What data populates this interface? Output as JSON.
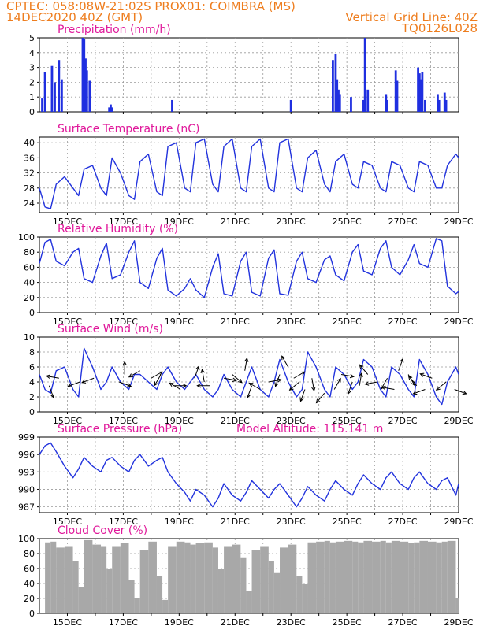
{
  "header": {
    "line1_left": "CPTEC:   058:08W-21:02S   PROX01: COIMBRA (MS)",
    "line2_left": "14DEC2020 40Z (GMT)",
    "line2_right": "Vertical Grid Line: 40Z",
    "line3_right": "TQ0126L028"
  },
  "colors": {
    "header": "#ee7d1e",
    "panel_title": "#e0199b",
    "line": "#2233dd",
    "precip_bar": "#1f2fe0",
    "cloud_fill": "#a8a8a8",
    "wind_arrow": "#000000"
  },
  "date_axis": {
    "labels": [
      "15DEC",
      "17DEC",
      "19DEC",
      "21DEC",
      "23DEC",
      "25DEC",
      "27DEC",
      "29DEC"
    ],
    "start_day": 14.0,
    "end_day": 29.0,
    "grid": "dotted vertical line at every day"
  },
  "chart_data": [
    {
      "type": "bar",
      "title": "Precipitation (mm/h)",
      "ylim": [
        0,
        5
      ],
      "yticks": [
        0,
        1,
        2,
        3,
        4,
        5
      ],
      "x_unit": "day of December 2020",
      "x": [
        14.1,
        14.2,
        14.45,
        14.55,
        14.7,
        14.8,
        15.55,
        15.6,
        15.65,
        15.7,
        15.8,
        16.5,
        16.55,
        16.6,
        18.75,
        23.0,
        24.5,
        24.6,
        24.65,
        24.7,
        24.75,
        25.15,
        25.6,
        25.65,
        25.75,
        26.4,
        26.45,
        26.75,
        26.8,
        27.55,
        27.6,
        27.65,
        27.7,
        27.8,
        28.25,
        28.3,
        28.5,
        28.55
      ],
      "values": [
        0.9,
        2.7,
        3.1,
        2.0,
        3.5,
        2.2,
        5.0,
        4.9,
        3.6,
        2.8,
        2.1,
        0.3,
        0.5,
        0.3,
        0.8,
        0.8,
        3.5,
        3.9,
        2.2,
        1.5,
        1.2,
        1.0,
        0.8,
        5.0,
        1.5,
        1.2,
        0.8,
        2.8,
        2.1,
        3.0,
        2.6,
        2.2,
        2.7,
        0.8,
        1.2,
        0.8,
        1.3,
        0.8
      ]
    },
    {
      "type": "line",
      "title": "Surface Temperature (nC)",
      "ylim": [
        21.5,
        41.5
      ],
      "yticks": [
        24,
        28,
        32,
        36,
        40
      ],
      "x_unit": "day of December 2020",
      "x": [
        14.0,
        14.2,
        14.4,
        14.6,
        14.9,
        15.2,
        15.4,
        15.6,
        15.9,
        16.2,
        16.4,
        16.6,
        16.9,
        17.2,
        17.4,
        17.6,
        17.9,
        18.2,
        18.4,
        18.6,
        18.9,
        19.2,
        19.4,
        19.6,
        19.9,
        20.2,
        20.4,
        20.6,
        20.9,
        21.2,
        21.4,
        21.6,
        21.9,
        22.2,
        22.4,
        22.6,
        22.9,
        23.2,
        23.4,
        23.6,
        23.9,
        24.2,
        24.4,
        24.6,
        24.9,
        25.2,
        25.4,
        25.6,
        25.9,
        26.2,
        26.4,
        26.6,
        26.9,
        27.2,
        27.4,
        27.6,
        27.9,
        28.2,
        28.4,
        28.6,
        28.9,
        29.0
      ],
      "values": [
        28,
        23,
        22.5,
        29,
        31,
        28,
        26,
        33,
        34,
        28,
        26,
        36,
        32,
        26,
        25,
        35,
        37,
        27,
        26,
        39,
        40,
        28,
        27,
        40,
        41,
        29,
        27,
        39,
        41,
        28,
        27,
        39,
        41,
        28,
        27,
        40,
        41,
        28,
        27,
        36,
        38,
        29,
        27,
        35,
        37,
        29,
        28,
        35,
        34,
        28,
        27,
        35,
        34,
        28,
        27,
        35,
        34,
        28,
        28,
        34,
        37,
        36
      ]
    },
    {
      "type": "line",
      "title": "Relative Humidity (%)",
      "ylim": [
        0,
        100
      ],
      "yticks": [
        0,
        20,
        40,
        60,
        80,
        100
      ],
      "x_unit": "day of December 2020",
      "x": [
        14.0,
        14.2,
        14.4,
        14.6,
        14.9,
        15.2,
        15.4,
        15.6,
        15.9,
        16.2,
        16.4,
        16.6,
        16.9,
        17.2,
        17.4,
        17.6,
        17.9,
        18.2,
        18.4,
        18.6,
        18.9,
        19.2,
        19.4,
        19.6,
        19.9,
        20.2,
        20.4,
        20.6,
        20.9,
        21.2,
        21.4,
        21.6,
        21.9,
        22.2,
        22.4,
        22.6,
        22.9,
        23.2,
        23.4,
        23.6,
        23.9,
        24.2,
        24.4,
        24.6,
        24.9,
        25.2,
        25.4,
        25.6,
        25.9,
        26.2,
        26.4,
        26.6,
        26.9,
        27.2,
        27.4,
        27.6,
        27.9,
        28.2,
        28.4,
        28.6,
        28.9,
        29.0
      ],
      "values": [
        65,
        93,
        97,
        68,
        62,
        80,
        85,
        45,
        40,
        75,
        92,
        45,
        50,
        80,
        95,
        40,
        32,
        72,
        85,
        30,
        22,
        32,
        45,
        30,
        20,
        60,
        78,
        25,
        22,
        68,
        80,
        27,
        22,
        72,
        83,
        25,
        23,
        68,
        80,
        45,
        40,
        70,
        75,
        50,
        42,
        80,
        90,
        55,
        50,
        85,
        95,
        60,
        50,
        70,
        90,
        65,
        60,
        98,
        95,
        35,
        25,
        28
      ]
    },
    {
      "type": "line",
      "title": "Surface Wind (m/s)",
      "ylim": [
        0,
        10
      ],
      "yticks": [
        0,
        2,
        4,
        6,
        8,
        10
      ],
      "x_unit": "day of December 2020",
      "x": [
        14.0,
        14.2,
        14.4,
        14.6,
        14.9,
        15.2,
        15.4,
        15.6,
        15.9,
        16.2,
        16.4,
        16.6,
        16.9,
        17.2,
        17.4,
        17.6,
        17.9,
        18.2,
        18.4,
        18.6,
        18.9,
        19.2,
        19.4,
        19.6,
        19.9,
        20.2,
        20.4,
        20.6,
        20.9,
        21.2,
        21.4,
        21.6,
        21.9,
        22.2,
        22.4,
        22.6,
        22.9,
        23.2,
        23.4,
        23.6,
        23.9,
        24.2,
        24.4,
        24.6,
        24.9,
        25.2,
        25.4,
        25.6,
        25.9,
        26.2,
        26.4,
        26.6,
        26.9,
        27.2,
        27.4,
        27.6,
        27.9,
        28.2,
        28.4,
        28.6,
        28.9,
        29.0
      ],
      "values": [
        5,
        3,
        2.5,
        5.5,
        6,
        3,
        2,
        8.5,
        6,
        3,
        4,
        6,
        4,
        3,
        5,
        5,
        4,
        3,
        5,
        6,
        4,
        3,
        4,
        5,
        3,
        2,
        3,
        5,
        3,
        2,
        4,
        6,
        3,
        2,
        4,
        7,
        4,
        2,
        3,
        8,
        6,
        3,
        2,
        6,
        5,
        3,
        4,
        7,
        6,
        3,
        2,
        6,
        5,
        3,
        2,
        7,
        5,
        2,
        1,
        4,
        6,
        5
      ],
      "wind_arrows": {
        "x": [
          14.35,
          14.7,
          15.45,
          15.95,
          16.85,
          17.05,
          17.6,
          18.0,
          18.35,
          18.8,
          19.05,
          19.55,
          19.9,
          20.1,
          20.6,
          20.9,
          21.35,
          21.6,
          21.9,
          22.2,
          22.6,
          22.9,
          23.1,
          23.3,
          23.5,
          23.75,
          24.2,
          24.55,
          24.8,
          25.2,
          25.45,
          25.75,
          26.1,
          26.45,
          26.7,
          26.85,
          27.2,
          27.5,
          27.8,
          28.05,
          28.55,
          28.85
        ],
        "speed": [
          3.5,
          4.5,
          4,
          4.5,
          4,
          5,
          5.5,
          4.5,
          5,
          3.5,
          3,
          4.5,
          4,
          3.5,
          4.5,
          5,
          5.5,
          3.5,
          3,
          4,
          5,
          6,
          4.5,
          4,
          3,
          4.5,
          2.5,
          3,
          5,
          4,
          3.5,
          5,
          4,
          4.5,
          3,
          5.5,
          5,
          3.5,
          3,
          4.5,
          4,
          3
        ],
        "direction_deg": [
          160,
          280,
          250,
          250,
          110,
          0,
          240,
          60,
          210,
          90,
          300,
          20,
          350,
          270,
          100,
          130,
          10,
          200,
          300,
          80,
          200,
          330,
          60,
          230,
          200,
          170,
          220,
          30,
          100,
          200,
          10,
          320,
          260,
          210,
          280,
          20,
          150,
          320,
          250,
          290,
          230,
          110
        ]
      }
    },
    {
      "type": "line",
      "title": "Surface Pressure (hPa)",
      "annotation": "Model Altitude: 115.141 m",
      "ylim": [
        986,
        999
      ],
      "yticks": [
        987,
        990,
        993,
        996,
        999
      ],
      "x_unit": "day of December 2020",
      "x": [
        14.0,
        14.2,
        14.4,
        14.6,
        14.9,
        15.2,
        15.4,
        15.6,
        15.9,
        16.2,
        16.4,
        16.6,
        16.9,
        17.2,
        17.4,
        17.6,
        17.9,
        18.2,
        18.4,
        18.6,
        18.9,
        19.2,
        19.4,
        19.6,
        19.9,
        20.2,
        20.4,
        20.6,
        20.9,
        21.2,
        21.4,
        21.6,
        21.9,
        22.2,
        22.4,
        22.6,
        22.9,
        23.2,
        23.4,
        23.6,
        23.9,
        24.2,
        24.4,
        24.6,
        24.9,
        25.2,
        25.4,
        25.6,
        25.9,
        26.2,
        26.4,
        26.6,
        26.9,
        27.2,
        27.4,
        27.6,
        27.9,
        28.2,
        28.4,
        28.6,
        28.9,
        29.0
      ],
      "values": [
        996,
        997.5,
        998,
        996.5,
        994,
        992,
        993.5,
        995.5,
        994,
        993,
        995,
        995.5,
        994,
        993,
        995,
        996,
        994,
        995,
        995.5,
        993,
        991,
        989.5,
        988,
        990,
        989,
        987,
        988.5,
        991,
        989,
        988,
        989.5,
        991.5,
        990,
        988.5,
        990,
        991,
        989,
        987,
        988.5,
        990.5,
        989,
        988,
        990,
        991.5,
        990,
        989,
        991,
        992.5,
        991,
        990,
        992,
        993,
        991,
        990,
        992,
        993,
        991,
        990,
        991.5,
        992,
        989,
        991
      ]
    },
    {
      "type": "area",
      "title": "Cloud Cover (%)",
      "ylim": [
        0,
        100
      ],
      "yticks": [
        0,
        20,
        40,
        60,
        80,
        100
      ],
      "x_unit": "day of December 2020",
      "x": [
        14.0,
        14.2,
        14.4,
        14.6,
        14.9,
        15.2,
        15.4,
        15.6,
        15.9,
        16.2,
        16.4,
        16.6,
        16.9,
        17.2,
        17.4,
        17.6,
        17.9,
        18.2,
        18.4,
        18.6,
        18.9,
        19.2,
        19.4,
        19.6,
        19.9,
        20.2,
        20.4,
        20.6,
        20.9,
        21.2,
        21.4,
        21.6,
        21.9,
        22.2,
        22.4,
        22.6,
        22.9,
        23.2,
        23.4,
        23.6,
        23.9,
        24.2,
        24.4,
        24.6,
        24.9,
        25.2,
        25.4,
        25.6,
        25.9,
        26.2,
        26.4,
        26.6,
        26.9,
        27.2,
        27.4,
        27.6,
        27.9,
        28.2,
        28.4,
        28.6,
        28.9,
        29.0
      ],
      "values": [
        0,
        95,
        96,
        88,
        90,
        70,
        35,
        98,
        92,
        90,
        60,
        90,
        94,
        45,
        20,
        85,
        96,
        50,
        18,
        90,
        96,
        95,
        92,
        94,
        95,
        88,
        60,
        90,
        92,
        75,
        30,
        85,
        90,
        70,
        55,
        88,
        92,
        50,
        40,
        95,
        96,
        97,
        95,
        96,
        97,
        96,
        95,
        97,
        96,
        97,
        95,
        97,
        96,
        94,
        95,
        97,
        96,
        95,
        96,
        97,
        20,
        0
      ]
    }
  ]
}
